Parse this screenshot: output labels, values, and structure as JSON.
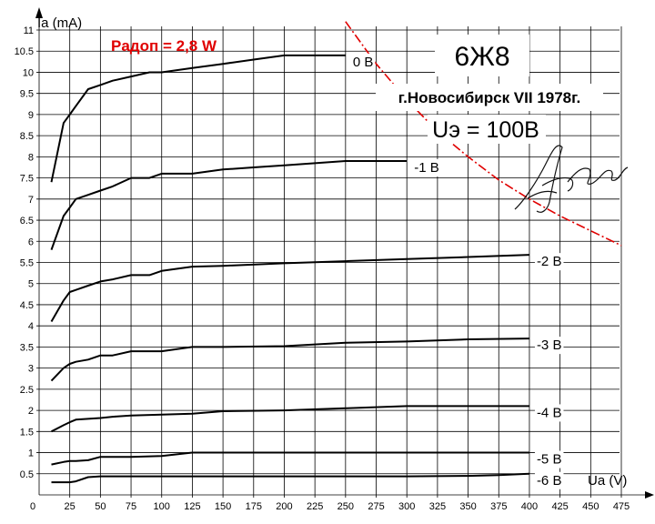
{
  "chart_data": {
    "type": "line",
    "title": "6Ж8",
    "subtitle": "г.Новосибирск VII 1978г.",
    "screen_voltage_label": "Uэ = 100В",
    "power_label": "Рaдоп = 2,8 W",
    "xlabel": "Ua (V)",
    "ylabel": "Ia (mA)",
    "xlim": [
      0,
      475
    ],
    "ylim": [
      0,
      11
    ],
    "x_ticks": [
      0,
      25,
      50,
      75,
      100,
      125,
      150,
      175,
      200,
      225,
      250,
      275,
      300,
      325,
      350,
      375,
      400,
      425,
      450,
      475
    ],
    "x_tick_labels": [
      "0",
      "25",
      "50",
      "75",
      "100",
      "125",
      "150",
      "175",
      "200",
      "225",
      "250",
      "275",
      "300",
      "325",
      "350",
      "375",
      "400",
      "425",
      "450",
      "475"
    ],
    "y_ticks": [
      0.5,
      1,
      1.5,
      2,
      2.5,
      3,
      3.5,
      4,
      4.5,
      5,
      5.5,
      6,
      6.5,
      7,
      7.5,
      8,
      8.5,
      9,
      9.5,
      10,
      10.5,
      11
    ],
    "y_tick_labels": [
      "0.5",
      "1",
      "1.5",
      "2",
      "2.5",
      "3",
      "3.5",
      "4",
      "4.5",
      "5",
      "5.5",
      "6",
      "6.5",
      "7",
      "7.5",
      "8",
      "8.5",
      "9",
      "9.5",
      "10",
      "10.5",
      "11"
    ],
    "grid": true,
    "colors": {
      "curves": "#000000",
      "max_power": "#e00000",
      "power_label": "#e00000"
    },
    "series": [
      {
        "name": "0 В",
        "x": [
          10,
          20,
          25,
          30,
          40,
          50,
          60,
          75,
          90,
          100,
          125,
          150,
          175,
          200,
          225,
          250
        ],
        "y": [
          7.4,
          8.8,
          9.0,
          9.2,
          9.6,
          9.7,
          9.8,
          9.9,
          10.0,
          10.0,
          10.1,
          10.2,
          10.3,
          10.4,
          10.4,
          10.4
        ]
      },
      {
        "name": "-1 В",
        "x": [
          10,
          20,
          25,
          30,
          40,
          50,
          60,
          75,
          90,
          100,
          125,
          150,
          175,
          200,
          250,
          300
        ],
        "y": [
          5.8,
          6.6,
          6.8,
          7.0,
          7.1,
          7.2,
          7.3,
          7.5,
          7.5,
          7.6,
          7.6,
          7.7,
          7.75,
          7.8,
          7.9,
          7.9
        ]
      },
      {
        "name": "-2 В",
        "x": [
          10,
          20,
          25,
          30,
          40,
          50,
          60,
          75,
          90,
          100,
          125,
          150,
          200,
          250,
          300,
          350,
          400
        ],
        "y": [
          4.1,
          4.6,
          4.8,
          4.85,
          4.95,
          5.05,
          5.1,
          5.2,
          5.2,
          5.3,
          5.4,
          5.42,
          5.48,
          5.53,
          5.58,
          5.63,
          5.68
        ]
      },
      {
        "name": "-3 В",
        "x": [
          10,
          20,
          25,
          30,
          40,
          50,
          60,
          75,
          90,
          100,
          125,
          150,
          200,
          250,
          300,
          350,
          400
        ],
        "y": [
          2.7,
          3.0,
          3.1,
          3.15,
          3.2,
          3.3,
          3.3,
          3.4,
          3.4,
          3.4,
          3.5,
          3.5,
          3.52,
          3.6,
          3.63,
          3.68,
          3.7
        ]
      },
      {
        "name": "-4 В",
        "x": [
          10,
          20,
          25,
          30,
          40,
          50,
          60,
          75,
          100,
          125,
          150,
          200,
          250,
          300,
          350,
          400
        ],
        "y": [
          1.5,
          1.65,
          1.72,
          1.78,
          1.8,
          1.82,
          1.85,
          1.88,
          1.9,
          1.92,
          1.98,
          2.0,
          2.05,
          2.1,
          2.1,
          2.1
        ]
      },
      {
        "name": "-5 В",
        "x": [
          10,
          20,
          25,
          30,
          40,
          50,
          60,
          75,
          100,
          125,
          150,
          200,
          250,
          300,
          350,
          400
        ],
        "y": [
          0.72,
          0.78,
          0.8,
          0.8,
          0.82,
          0.9,
          0.9,
          0.9,
          0.92,
          1.0,
          1.0,
          1.0,
          1.0,
          1.0,
          1.0,
          1.0
        ]
      },
      {
        "name": "-6 В",
        "x": [
          10,
          25,
          30,
          40,
          50,
          75,
          100,
          150,
          200,
          250,
          300,
          350,
          375,
          400
        ],
        "y": [
          0.3,
          0.3,
          0.32,
          0.42,
          0.44,
          0.44,
          0.44,
          0.44,
          0.44,
          0.44,
          0.44,
          0.45,
          0.47,
          0.5
        ]
      }
    ],
    "max_power_line": {
      "x": [
        250,
        275,
        300,
        325,
        350,
        375,
        400,
        425,
        450,
        475
      ],
      "y": [
        11.2,
        10.2,
        9.35,
        8.6,
        8.0,
        7.45,
        7.0,
        6.6,
        6.25,
        5.9
      ]
    }
  }
}
